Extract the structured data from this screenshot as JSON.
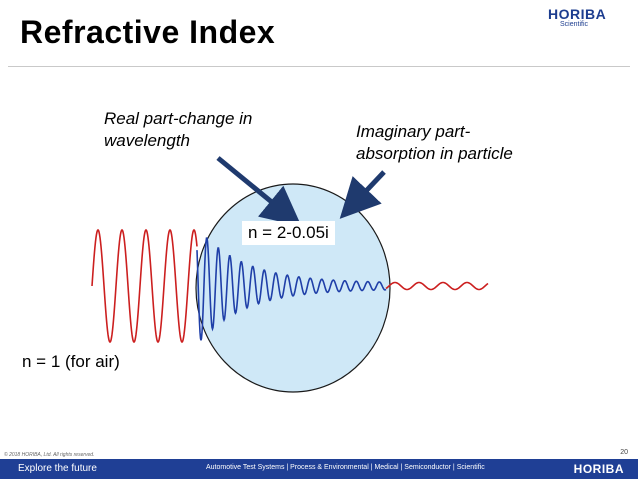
{
  "slide": {
    "title": "Refractive Index",
    "page_number": "20",
    "copyright": "© 2018 HORIBA, Ltd. All rights reserved."
  },
  "logo": {
    "name": "HORIBA",
    "subtitle": "Scientific"
  },
  "diagram": {
    "real_part_label": [
      "Real part-change in",
      "wavelength"
    ],
    "imaginary_part_label": [
      "Imaginary part-",
      "absorption in particle"
    ],
    "particle_index": "n = 2-0.05i",
    "air_index": "n = 1 (for air)",
    "colors": {
      "particle_fill": "#cfe8f7",
      "particle_stroke": "#1a1a1a",
      "wave_outside": "#cc1f1f",
      "wave_inside": "#1f3fa8",
      "arrow": "#1f3a6e"
    }
  },
  "footer": {
    "tagline": "Explore the future",
    "fields": "Automotive Test Systems  |  Process & Environmental  |  Medical  |  Semiconductor  |  Scientific",
    "brand": "HORIBA"
  }
}
